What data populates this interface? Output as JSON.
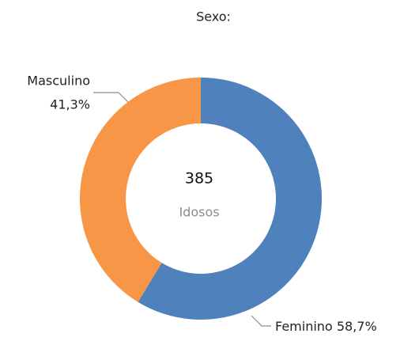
{
  "chart_data": {
    "type": "pie",
    "title": "Sexo:",
    "categories": [
      "Feminino",
      "Masculino"
    ],
    "values": [
      58.7,
      41.3
    ],
    "value_labels": [
      "58,7%",
      "41,3%"
    ],
    "colors": [
      "#4f81bd",
      "#f79646"
    ],
    "center_value": 385,
    "center_label": "Idosos"
  }
}
